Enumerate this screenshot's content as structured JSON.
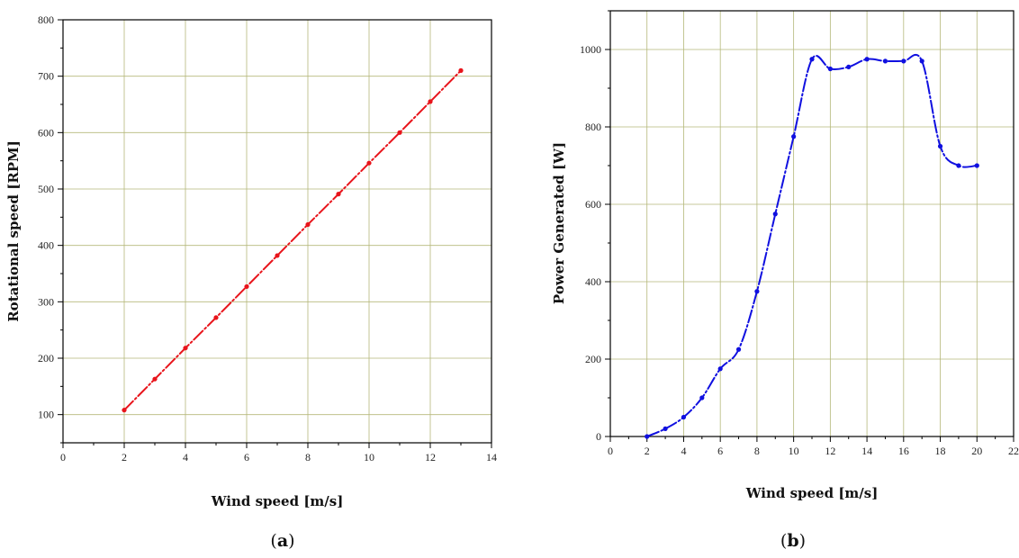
{
  "chart_data": [
    {
      "type": "line",
      "panel_label": "(a)",
      "xlabel": "Wind speed [m/s]",
      "ylabel": "Rotational speed [RPM]",
      "xlim": [
        0,
        14
      ],
      "ylim": [
        50,
        800
      ],
      "x_ticks": [
        0,
        2,
        4,
        6,
        8,
        10,
        12,
        14
      ],
      "y_ticks": [
        100,
        200,
        300,
        400,
        500,
        600,
        700,
        800
      ],
      "grid": true,
      "color": "#e8141b",
      "line_style": "dash-dot",
      "series": [
        {
          "x": [
            2,
            3,
            4,
            5,
            6,
            7,
            8,
            9,
            10,
            11,
            12,
            13
          ],
          "y": [
            108,
            163,
            218,
            272,
            327,
            382,
            437,
            491,
            546,
            600,
            655,
            710
          ]
        }
      ]
    },
    {
      "type": "line",
      "panel_label": "(b)",
      "xlabel": "Wind speed [m/s]",
      "ylabel": "Power Generated [W]",
      "xlim": [
        0,
        22
      ],
      "ylim": [
        0,
        1100
      ],
      "x_ticks": [
        0,
        2,
        4,
        6,
        8,
        10,
        12,
        14,
        16,
        18,
        20,
        22
      ],
      "y_ticks": [
        0,
        200,
        400,
        600,
        800,
        1000
      ],
      "grid": true,
      "color": "#1010e0",
      "line_style": "dash-dot",
      "series": [
        {
          "x": [
            2,
            3,
            4,
            5,
            6,
            7,
            8,
            9,
            10,
            11,
            12,
            13,
            14,
            15,
            16,
            17,
            18,
            19,
            20
          ],
          "y": [
            0,
            20,
            50,
            100,
            175,
            225,
            375,
            575,
            775,
            975,
            950,
            955,
            975,
            970,
            970,
            970,
            750,
            700,
            700
          ]
        }
      ]
    }
  ]
}
